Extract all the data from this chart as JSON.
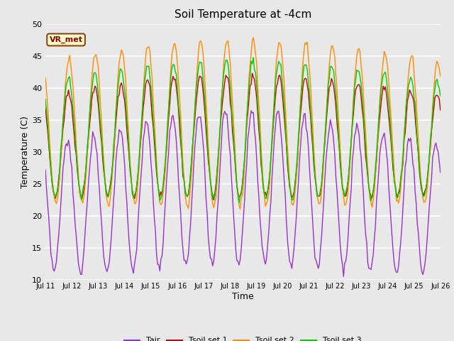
{
  "title": "Soil Temperature at -4cm",
  "xlabel": "Time",
  "ylabel": "Temperature (C)",
  "ylim": [
    10,
    50
  ],
  "xlim_start": 0,
  "xlim_end": 15,
  "background_color": "#e8e8e8",
  "plot_bg_color": "#e8e8e8",
  "grid_color": "white",
  "annotation_text": "VR_met",
  "annotation_bg": "#FFFFCC",
  "annotation_border": "#8B4513",
  "annotation_text_color": "#8B0000",
  "tick_labels": [
    "Jul 11",
    "Jul 12",
    "Jul 13",
    "Jul 14",
    "Jul 15",
    "Jul 16",
    "Jul 17",
    "Jul 18",
    "Jul 19",
    "Jul 20",
    "Jul 21",
    "Jul 22",
    "Jul 23",
    "Jul 24",
    "Jul 25",
    "Jul 26"
  ],
  "line_colors": {
    "Tair": "#9932CC",
    "Tsoil1": "#CC0000",
    "Tsoil2": "#FF8C00",
    "Tsoil3": "#00CC00"
  },
  "legend_labels": [
    "Tair",
    "Tsoil set 1",
    "Tsoil set 2",
    "Tsoil set 3"
  ],
  "figsize": [
    6.4,
    4.8
  ],
  "dpi": 100
}
